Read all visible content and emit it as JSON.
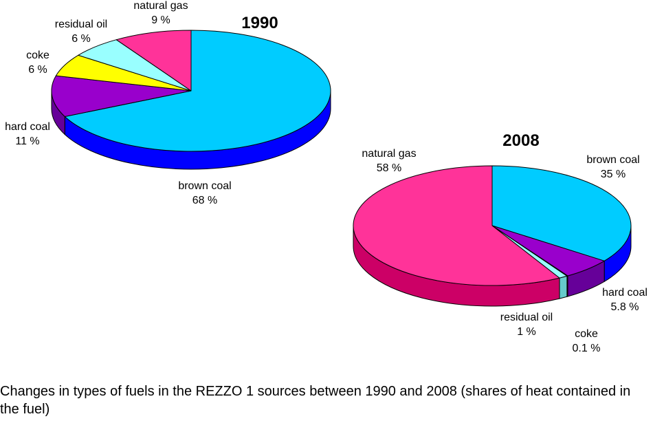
{
  "caption": "Changes in types of fuels in the REZZO 1 sources between 1990 and 2008 (shares of heat contained in the fuel)",
  "colors": {
    "brown coal": {
      "top": "#00CCFF",
      "side": "#0000FF"
    },
    "hard coal": {
      "top": "#9900CC",
      "side": "#660099"
    },
    "coke": {
      "top": "#FFFF00",
      "side": "#CCCC00"
    },
    "residual oil": {
      "top": "#99FFFF",
      "side": "#66CCCC"
    },
    "natural gas": {
      "top": "#FF3399",
      "side": "#CC0066"
    }
  },
  "chart_data": [
    {
      "type": "pie",
      "title": "1990",
      "slices": [
        {
          "label": "brown coal",
          "value": 68,
          "value_label": "68 %"
        },
        {
          "label": "hard coal",
          "value": 11,
          "value_label": "11 %"
        },
        {
          "label": "coke",
          "value": 6,
          "value_label": "6 %"
        },
        {
          "label": "residual oil",
          "value": 6,
          "value_label": "6 %"
        },
        {
          "label": "natural gas",
          "value": 9,
          "value_label": "9 %"
        }
      ]
    },
    {
      "type": "pie",
      "title": "2008",
      "slices": [
        {
          "label": "brown coal",
          "value": 35,
          "value_label": "35 %"
        },
        {
          "label": "hard coal",
          "value": 5.8,
          "value_label": "5.8 %"
        },
        {
          "label": "coke",
          "value": 0.1,
          "value_label": "0.1 %"
        },
        {
          "label": "residual oil",
          "value": 1,
          "value_label": "1 %"
        },
        {
          "label": "natural gas",
          "value": 58,
          "value_label": "58 %"
        }
      ]
    }
  ]
}
